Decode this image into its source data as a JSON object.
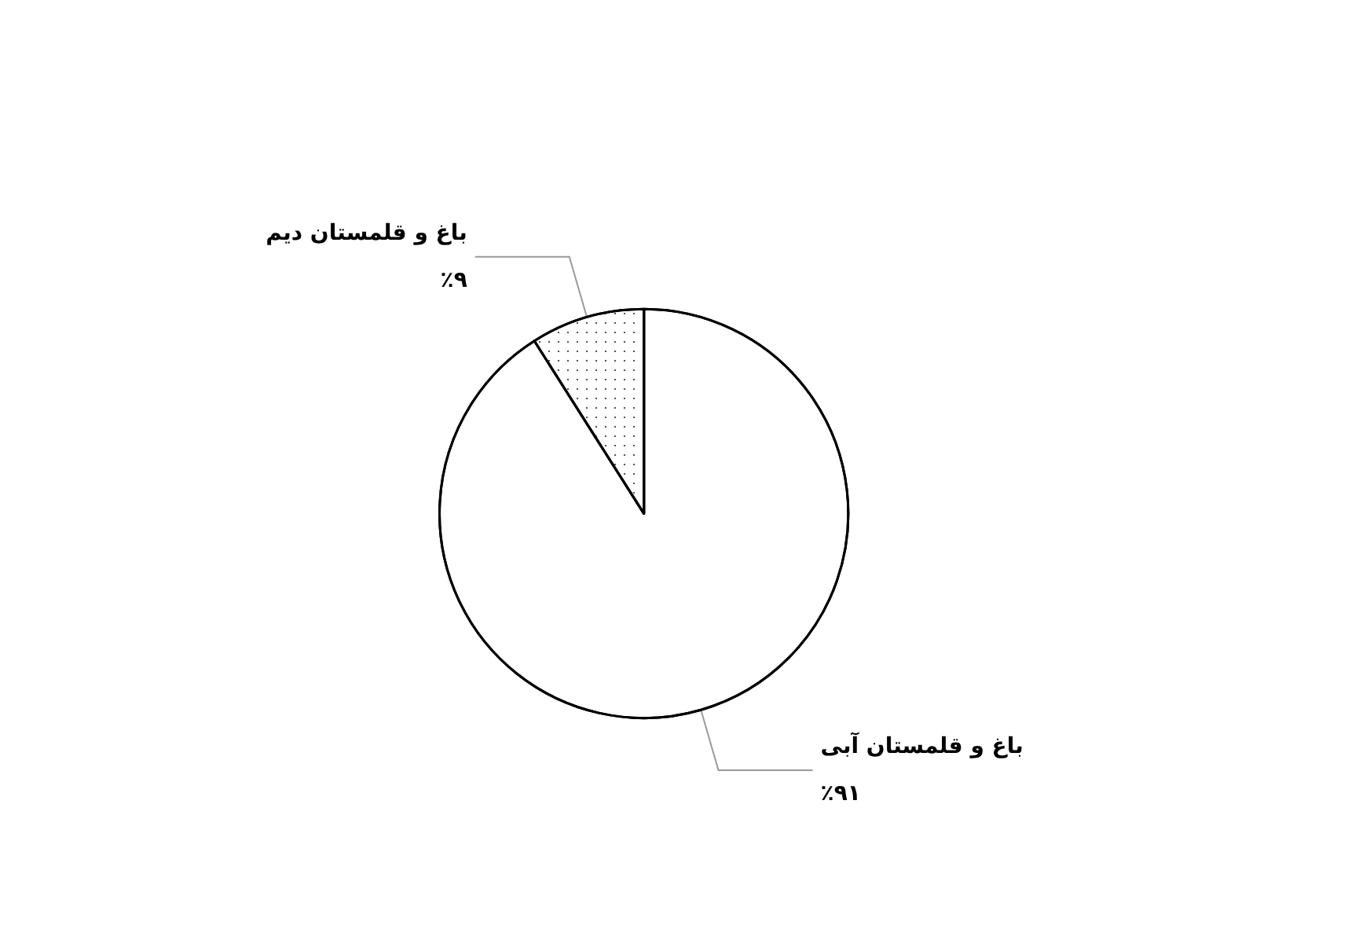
{
  "chart_data": {
    "type": "pie",
    "categories": [
      "باغ و قلمستان آبی",
      "باغ و قلمستان دیم"
    ],
    "values": [
      91,
      9
    ],
    "colors": [
      "#ffffff",
      "#ffffff"
    ],
    "value_labels": [
      "٪۹۱",
      "٪۹"
    ],
    "legend": false
  }
}
